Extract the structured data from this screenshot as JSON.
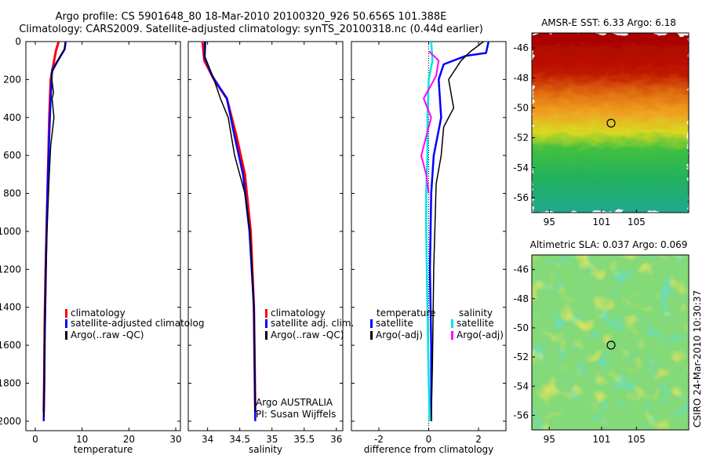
{
  "header": {
    "line1": "Argo profile: CS 5901648_80 18-Mar-2010 20100320_926 50.656S 101.388E",
    "line2": "Climatology: CARS2009. Satellite-adjusted climatology: synTS_20100318.nc (0.44d earlier)"
  },
  "colors": {
    "climatology": "#ff0000",
    "satellite": "#0000ff",
    "argo": "#000000",
    "sat_salinity": "#00e5e5",
    "argo_salinity": "#ff00ff"
  },
  "side_text": "CSIRO 24-Mar-2010 10:30:37",
  "chart_data": [
    {
      "type": "line",
      "xlabel": "temperature",
      "ylim": [
        2050,
        0
      ],
      "xlim": [
        -2,
        31
      ],
      "xticks": [
        0,
        10,
        20,
        30
      ],
      "yticks": [
        0,
        200,
        400,
        600,
        800,
        1000,
        1200,
        1400,
        1600,
        1800,
        2000
      ],
      "legend": [
        "climatology",
        "satellite-adjusted climatolog",
        "Argo(..raw -QC)"
      ],
      "series": [
        {
          "name": "climatology",
          "color": "#ff0000",
          "width": 3,
          "x": [
            5.0,
            4.4,
            3.3,
            3.0,
            2.8,
            2.6,
            2.4,
            2.2,
            2.0,
            1.9,
            1.8
          ],
          "y": [
            0,
            50,
            200,
            400,
            600,
            800,
            1000,
            1200,
            1500,
            1800,
            1950
          ]
        },
        {
          "name": "satellite-adjusted climatolog",
          "color": "#0000ff",
          "width": 2.5,
          "x": [
            6.5,
            6.3,
            3.6,
            3.3,
            3.0,
            2.7,
            2.4,
            2.2,
            2.0,
            1.9,
            1.8
          ],
          "y": [
            0,
            40,
            150,
            300,
            500,
            700,
            1000,
            1300,
            1600,
            1850,
            2000
          ]
        },
        {
          "name": "Argo(..raw -QC)",
          "color": "#000000",
          "width": 1.5,
          "x": [
            6.4,
            6.2,
            3.4,
            3.9,
            3.6,
            4.0,
            3.3,
            3.0,
            2.5,
            2.0,
            1.9,
            1.8
          ],
          "y": [
            5,
            40,
            170,
            270,
            300,
            400,
            550,
            700,
            1000,
            1500,
            1800,
            1980
          ]
        }
      ]
    },
    {
      "type": "line",
      "xlabel": "salinity",
      "ylim": [
        2050,
        0
      ],
      "xlim": [
        33.7,
        36.1
      ],
      "xticks": [
        34,
        34.5,
        35,
        35.5,
        36
      ],
      "legend": [
        "climatology",
        "satellite adj. clim.",
        "Argo(..raw -QC)"
      ],
      "annotation": [
        "Argo AUSTRALIA",
        "PI: Susan Wijffels"
      ],
      "series": [
        {
          "name": "climatology",
          "color": "#ff0000",
          "width": 3,
          "x": [
            33.92,
            33.95,
            34.1,
            34.3,
            34.45,
            34.58,
            34.67,
            34.72,
            34.74
          ],
          "y": [
            0,
            100,
            200,
            300,
            500,
            700,
            1000,
            1400,
            1950
          ]
        },
        {
          "name": "satellite adj. clim.",
          "color": "#0000ff",
          "width": 2.5,
          "x": [
            33.96,
            33.95,
            34.07,
            34.3,
            34.42,
            34.55,
            34.65,
            34.72,
            34.74
          ],
          "y": [
            0,
            80,
            180,
            300,
            500,
            700,
            1000,
            1400,
            2000
          ]
        },
        {
          "name": "Argo(..raw -QC)",
          "color": "#000000",
          "width": 1.5,
          "x": [
            33.97,
            33.96,
            34.1,
            34.2,
            34.32,
            34.42,
            34.58,
            34.66,
            34.72,
            34.74
          ],
          "y": [
            0,
            80,
            200,
            300,
            400,
            600,
            800,
            1000,
            1400,
            1950
          ]
        }
      ]
    },
    {
      "type": "line",
      "xlabel": "difference from climatology",
      "ylim": [
        2050,
        0
      ],
      "xlim": [
        -3.1,
        3.1
      ],
      "xticks": [
        -2,
        0,
        2
      ],
      "legend_titles": [
        "temperature",
        "salinity"
      ],
      "legend": [
        "satellite",
        "Argo(-adj)",
        "satellite",
        "Argo(-adj)"
      ],
      "series": [
        {
          "name": "satellite",
          "color": "#0000ff",
          "width": 2.5,
          "x": [
            2.4,
            2.3,
            1.5,
            0.6,
            0.4,
            0.5,
            0.2,
            0.1,
            0.05,
            0.1,
            0.1
          ],
          "y": [
            0,
            60,
            75,
            120,
            200,
            400,
            600,
            800,
            1200,
            1600,
            2000
          ]
        },
        {
          "name": "Argo(-adj)",
          "color": "#000000",
          "width": 1.5,
          "x": [
            2.2,
            1.7,
            1.3,
            0.8,
            1.0,
            0.6,
            0.5,
            0.3,
            0.2,
            0.15,
            0.1
          ],
          "y": [
            0,
            50,
            100,
            200,
            350,
            450,
            600,
            750,
            1200,
            1700,
            2000
          ]
        },
        {
          "name": "satellite",
          "color": "#00e5e5",
          "width": 2.5,
          "x": [
            0.1,
            0.15,
            0.0,
            -0.05,
            -0.05,
            -0.1,
            -0.1,
            -0.05,
            0.0,
            0.05
          ],
          "y": [
            0,
            100,
            200,
            400,
            600,
            800,
            1000,
            1400,
            1800,
            2000
          ]
        },
        {
          "name": "Argo(-adj)",
          "color": "#ff00ff",
          "width": 2,
          "x": [
            0.0,
            0.4,
            0.3,
            -0.2,
            0.1,
            -0.3,
            -0.1,
            0.0
          ],
          "y": [
            50,
            100,
            180,
            300,
            400,
            600,
            700,
            800
          ]
        }
      ]
    },
    {
      "type": "heatmap",
      "title": "AMSR-E SST: 6.33 Argo: 6.18",
      "xticks": [
        95,
        101,
        105
      ],
      "yticks": [
        -46,
        -48,
        -50,
        -52,
        -54,
        -56
      ],
      "marker": {
        "lon": 101.4,
        "lat": -50.66
      },
      "bands": [
        {
          "stop": 0.0,
          "color": "#a50000"
        },
        {
          "stop": 0.22,
          "color": "#c01500"
        },
        {
          "stop": 0.34,
          "color": "#e07010"
        },
        {
          "stop": 0.44,
          "color": "#f0a020"
        },
        {
          "stop": 0.55,
          "color": "#d8d820"
        },
        {
          "stop": 0.65,
          "color": "#40c040"
        },
        {
          "stop": 0.82,
          "color": "#20b060"
        },
        {
          "stop": 1.0,
          "color": "#20a890"
        }
      ]
    },
    {
      "type": "heatmap",
      "title": "Altimetric SLA: 0.037 Argo: 0.069",
      "xticks": [
        95,
        101,
        105
      ],
      "yticks": [
        -46,
        -48,
        -50,
        -52,
        -54,
        -56
      ],
      "marker": {
        "lon": 101.4,
        "lat": -50.66
      }
    }
  ]
}
